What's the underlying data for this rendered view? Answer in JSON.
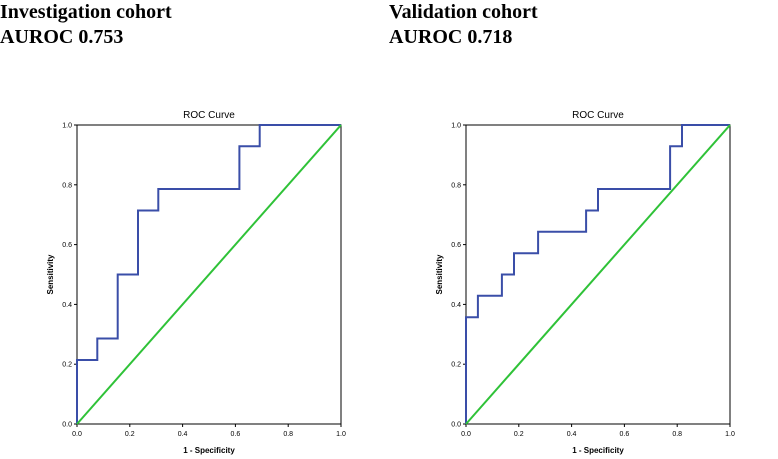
{
  "chart_data": [
    {
      "type": "line",
      "heading": "Investigation cohort",
      "auroc_label": "AUROC 0.753",
      "title": "ROC Curve",
      "xlabel": "1 - Specificity",
      "ylabel": "Sensitivity",
      "xlim": [
        0,
        1
      ],
      "ylim": [
        0,
        1
      ],
      "xticks": [
        "0.0",
        "0.2",
        "0.4",
        "0.6",
        "0.8",
        "1.0"
      ],
      "yticks": [
        "0.0",
        "0.2",
        "0.4",
        "0.6",
        "0.8",
        "1.0"
      ],
      "series": [
        {
          "name": "ROC",
          "color": "#3a4ea8",
          "points": [
            [
              0,
              0
            ],
            [
              0,
              0.214
            ],
            [
              0.077,
              0.214
            ],
            [
              0.077,
              0.286
            ],
            [
              0.154,
              0.286
            ],
            [
              0.154,
              0.5
            ],
            [
              0.231,
              0.5
            ],
            [
              0.231,
              0.714
            ],
            [
              0.308,
              0.714
            ],
            [
              0.308,
              0.786
            ],
            [
              0.615,
              0.786
            ],
            [
              0.615,
              0.929
            ],
            [
              0.692,
              0.929
            ],
            [
              0.692,
              1.0
            ],
            [
              1.0,
              1.0
            ]
          ]
        },
        {
          "name": "Reference line",
          "color": "#2fc238",
          "points": [
            [
              0,
              0
            ],
            [
              1,
              1
            ]
          ]
        }
      ]
    },
    {
      "type": "line",
      "heading": "Validation cohort",
      "auroc_label": "AUROC 0.718",
      "title": "ROC Curve",
      "xlabel": "1 - Specificity",
      "ylabel": "Sensitivity",
      "xlim": [
        0,
        1
      ],
      "ylim": [
        0,
        1
      ],
      "xticks": [
        "0.0",
        "0.2",
        "0.4",
        "0.6",
        "0.8",
        "1.0"
      ],
      "yticks": [
        "0.0",
        "0.2",
        "0.4",
        "0.6",
        "0.8",
        "1.0"
      ],
      "series": [
        {
          "name": "ROC",
          "color": "#3a4ea8",
          "points": [
            [
              0,
              0
            ],
            [
              0,
              0.357
            ],
            [
              0.045,
              0.357
            ],
            [
              0.045,
              0.429
            ],
            [
              0.136,
              0.429
            ],
            [
              0.136,
              0.5
            ],
            [
              0.182,
              0.5
            ],
            [
              0.182,
              0.571
            ],
            [
              0.273,
              0.571
            ],
            [
              0.273,
              0.643
            ],
            [
              0.455,
              0.643
            ],
            [
              0.455,
              0.714
            ],
            [
              0.5,
              0.714
            ],
            [
              0.5,
              0.786
            ],
            [
              0.773,
              0.786
            ],
            [
              0.773,
              0.929
            ],
            [
              0.818,
              0.929
            ],
            [
              0.818,
              1.0
            ],
            [
              1.0,
              1.0
            ]
          ]
        },
        {
          "name": "Reference line",
          "color": "#2fc238",
          "points": [
            [
              0,
              0
            ],
            [
              1,
              1
            ]
          ]
        }
      ]
    }
  ]
}
